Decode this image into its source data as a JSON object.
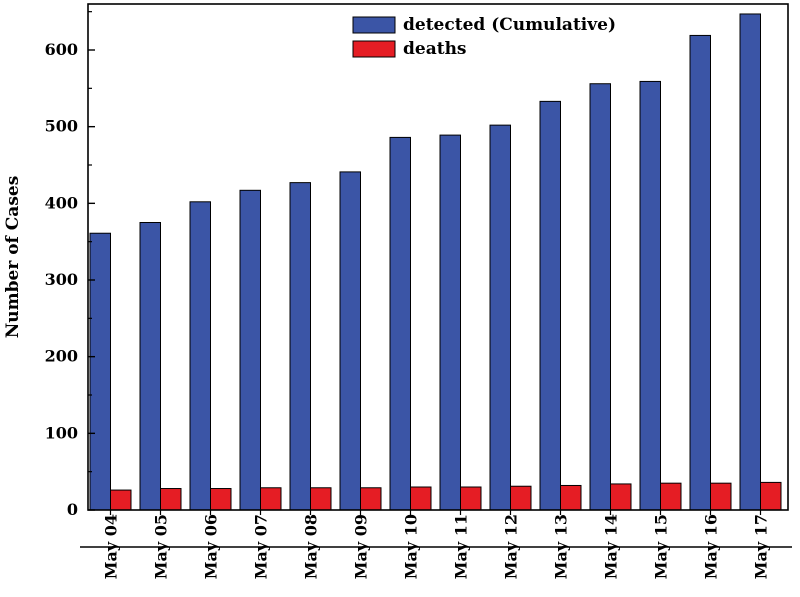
{
  "chart_data": {
    "type": "bar",
    "ylabel": "Number of Cases",
    "xlabel": "",
    "ylim": [
      0,
      660
    ],
    "yticks": [
      0,
      100,
      200,
      300,
      400,
      500,
      600
    ],
    "grid": false,
    "legend_position": "top-center",
    "categories": [
      "May 04",
      "May 05",
      "May 06",
      "May 07",
      "May 08",
      "May 09",
      "May 10",
      "May 11",
      "May 12",
      "May 13",
      "May 14",
      "May 15",
      "May 16",
      "May 17"
    ],
    "series": [
      {
        "name": "detected (Cumulative)",
        "color": "#3b55a6",
        "values": [
          361,
          375,
          402,
          417,
          427,
          441,
          486,
          489,
          502,
          533,
          556,
          559,
          619,
          647
        ]
      },
      {
        "name": "deaths",
        "color": "#e51d24",
        "values": [
          26,
          28,
          28,
          29,
          29,
          29,
          30,
          30,
          31,
          32,
          34,
          35,
          35,
          36
        ]
      }
    ]
  }
}
